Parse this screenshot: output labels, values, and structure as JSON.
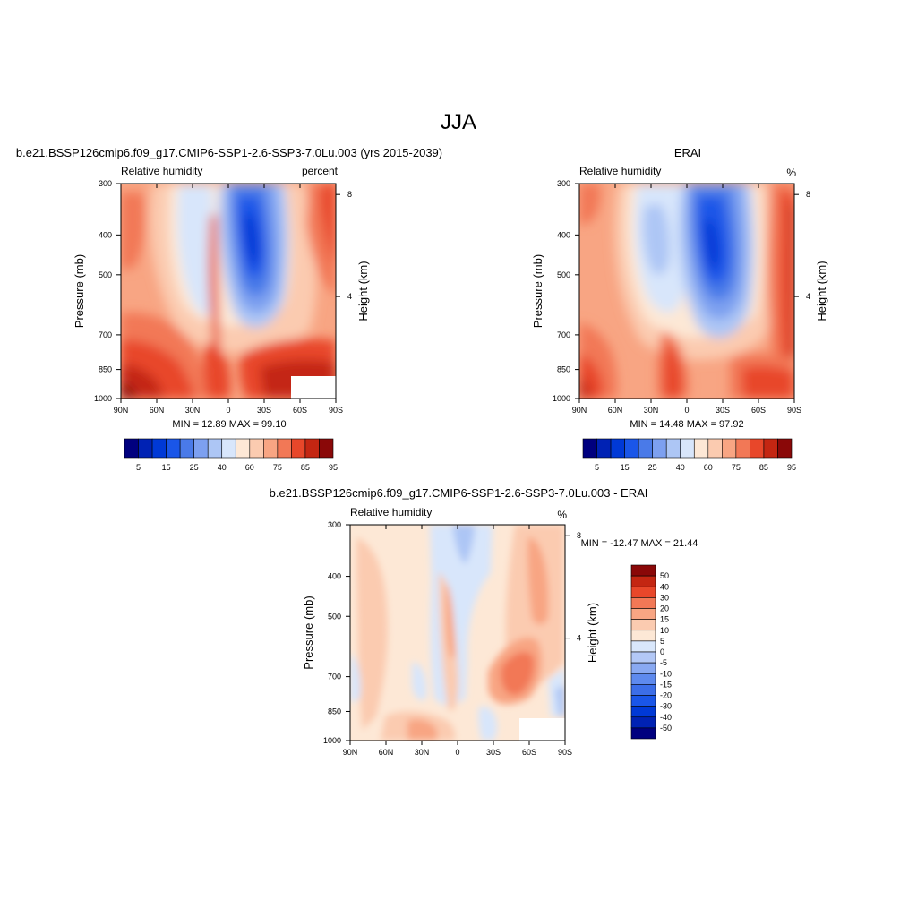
{
  "main_title": "JJA",
  "colors": {
    "abs_scale": [
      "#00007f",
      "#0022b4",
      "#0039d6",
      "#1a56e8",
      "#4a7ae8",
      "#7da0f0",
      "#adc6f5",
      "#d8e6fb",
      "#fde8d6",
      "#fbcbb0",
      "#f8a583",
      "#f27856",
      "#e8472a",
      "#c42612",
      "#8a0808"
    ],
    "diff_scale": [
      "#00007f",
      "#0022b4",
      "#0039d6",
      "#1a56e8",
      "#3c6ee8",
      "#5e8aee",
      "#89a9f2",
      "#b3c8f6",
      "#d9e7fb",
      "#fde8d6",
      "#fbcbb0",
      "#f8a583",
      "#f27856",
      "#e8472a",
      "#c42612",
      "#8a0808"
    ]
  },
  "chart_data": [
    {
      "type": "heatmap",
      "title": "b.e21.BSSP126cmip6.f09_g17.CMIP6-SSP1-2.6-SSP3-7.0Lu.003 (yrs 2015-2039)",
      "left_string": "Relative humidity",
      "right_string": "percent",
      "ylabel": "Pressure (mb)",
      "ylabel_right": "Height (km)",
      "x_ticks": [
        "90N",
        "60N",
        "30N",
        "0",
        "30S",
        "60S",
        "90S"
      ],
      "y_ticks": [
        "300",
        "400",
        "500",
        "700",
        "850",
        "1000"
      ],
      "y_right_ticks": [
        "8",
        "4"
      ],
      "min_max": "MIN =  12.89  MAX =  99.10",
      "colorbar_labels": [
        "5",
        "15",
        "25",
        "40",
        "60",
        "75",
        "85",
        "95"
      ],
      "grid": false
    },
    {
      "type": "heatmap",
      "title": "ERAI",
      "left_string": "Relative humidity",
      "right_string": "%",
      "ylabel": "Pressure (mb)",
      "ylabel_right": "Height (km)",
      "x_ticks": [
        "90N",
        "60N",
        "30N",
        "0",
        "30S",
        "60S",
        "90S"
      ],
      "y_ticks": [
        "300",
        "400",
        "500",
        "700",
        "850",
        "1000"
      ],
      "y_right_ticks": [
        "8",
        "4"
      ],
      "min_max": "MIN =  14.48  MAX =  97.92",
      "colorbar_labels": [
        "5",
        "15",
        "25",
        "40",
        "60",
        "75",
        "85",
        "95"
      ],
      "grid": false
    },
    {
      "type": "heatmap",
      "title": "b.e21.BSSP126cmip6.f09_g17.CMIP6-SSP1-2.6-SSP3-7.0Lu.003 - ERAI",
      "left_string": "Relative humidity",
      "right_string": "%",
      "ylabel": "Pressure (mb)",
      "ylabel_right": "Height (km)",
      "x_ticks": [
        "90N",
        "60N",
        "30N",
        "0",
        "30S",
        "60S",
        "90S"
      ],
      "y_ticks": [
        "300",
        "400",
        "500",
        "700",
        "850",
        "1000"
      ],
      "y_right_ticks": [
        "8",
        "4"
      ],
      "min_max": "MIN = -12.47  MAX =  21.44",
      "colorbar_labels": [
        "50",
        "40",
        "30",
        "20",
        "15",
        "10",
        "5",
        "0",
        "-5",
        "-10",
        "-15",
        "-20",
        "-30",
        "-40",
        "-50"
      ],
      "grid": false
    }
  ]
}
